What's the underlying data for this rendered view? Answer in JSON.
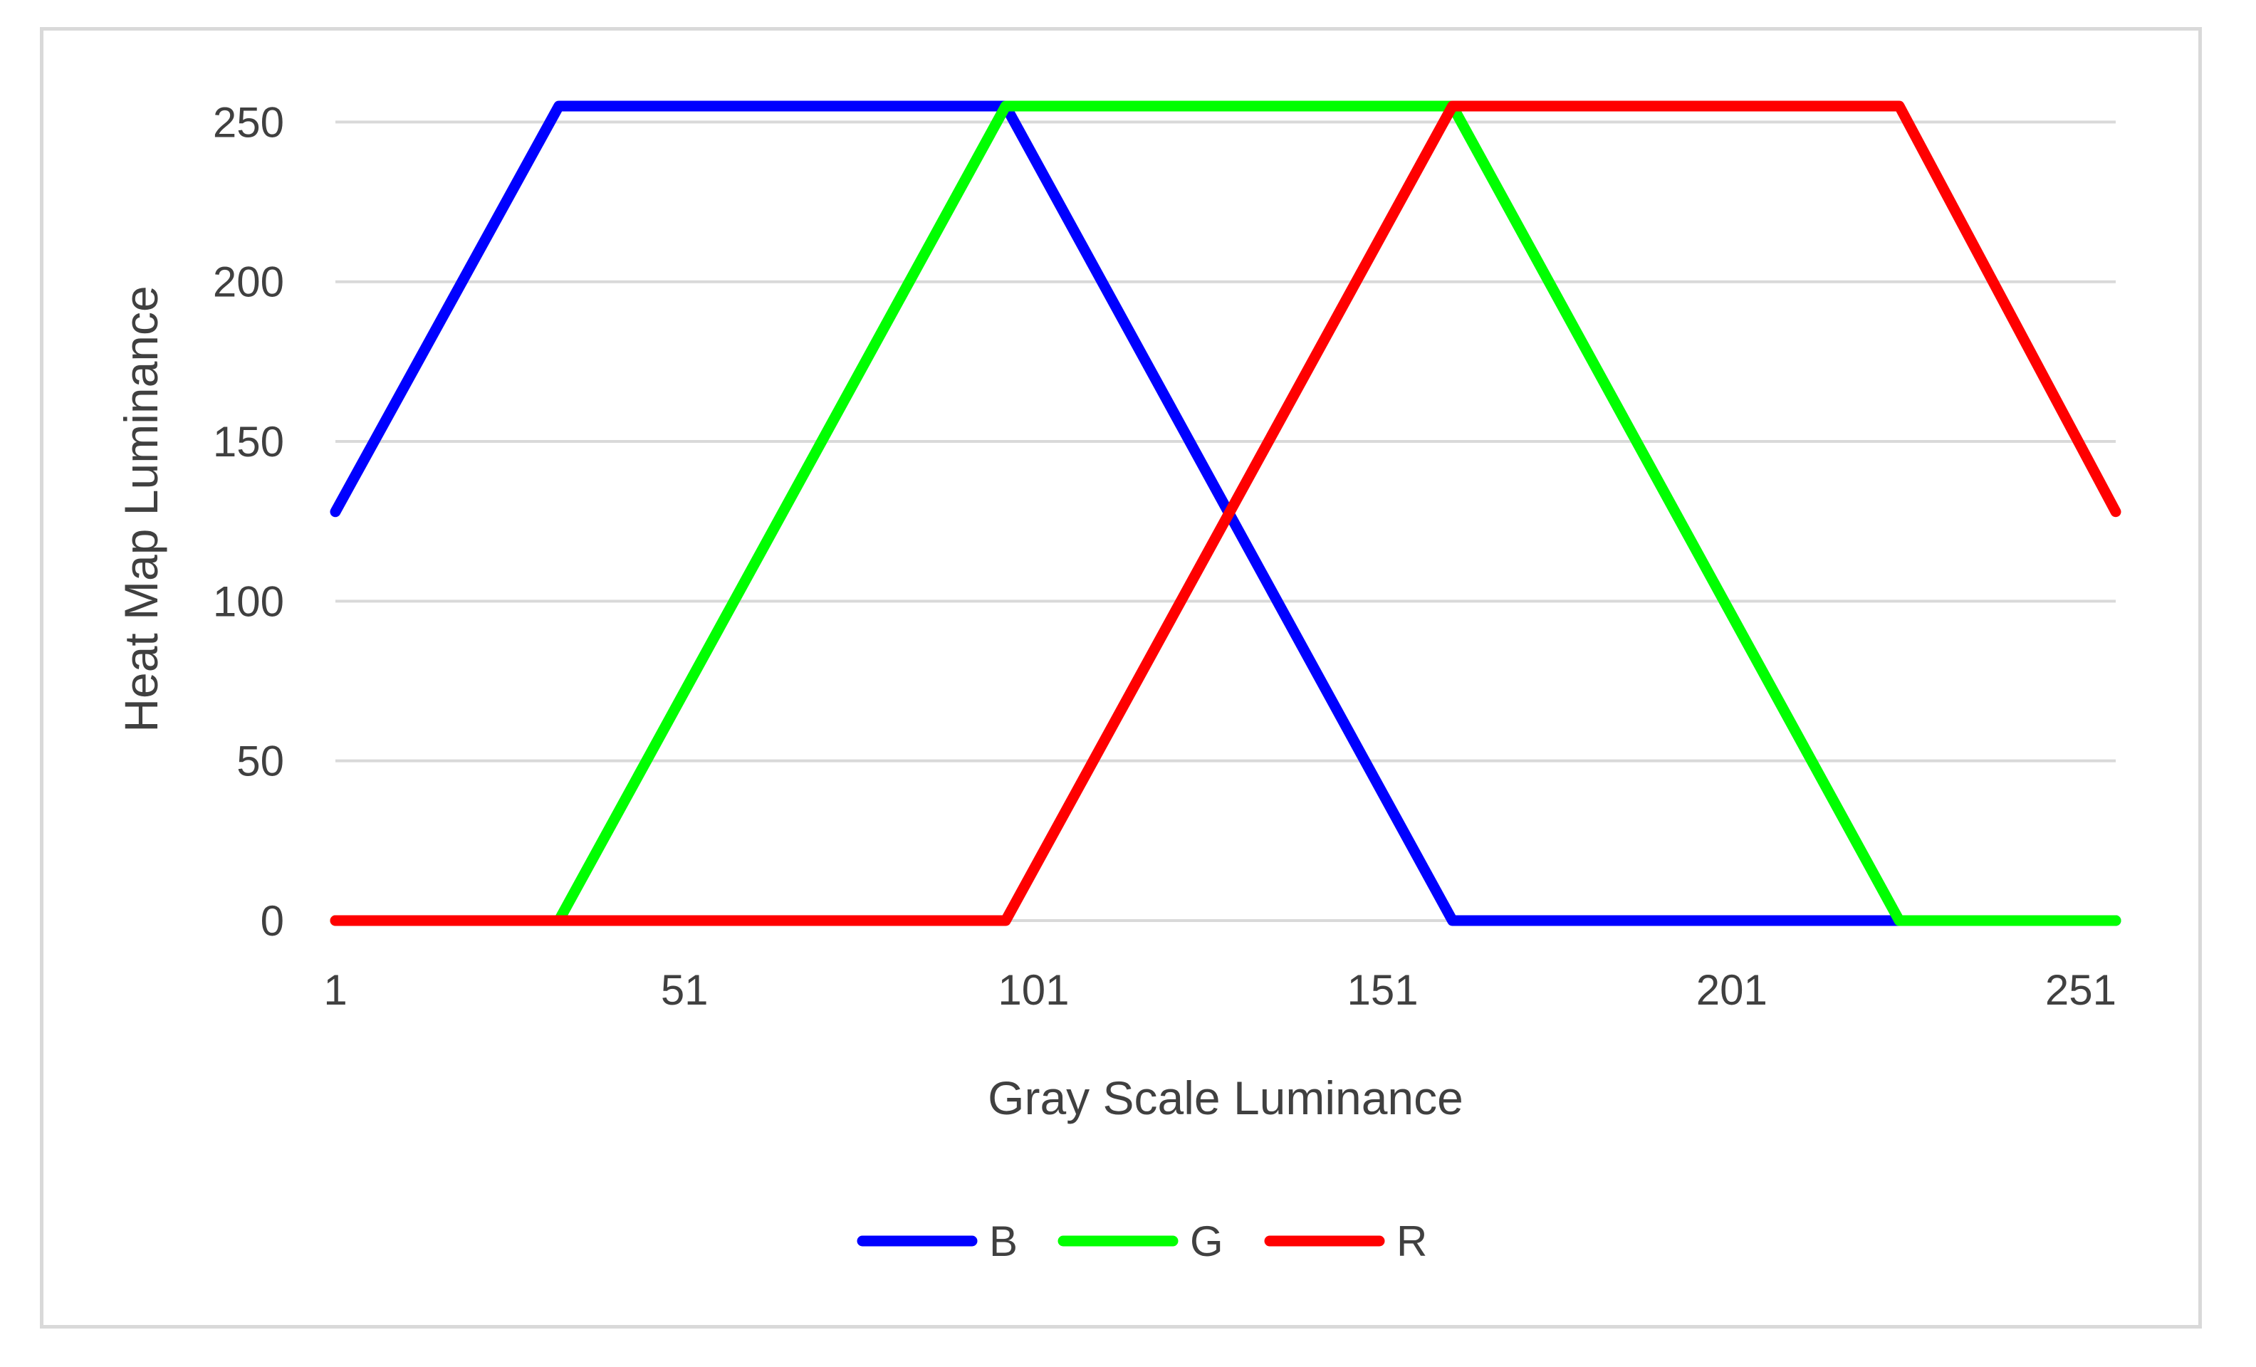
{
  "chart_data": {
    "type": "line",
    "title": "",
    "xlabel": "Gray Scale Luminance",
    "ylabel": "Heat Map Luminance",
    "xlim": [
      1,
      256
    ],
    "ylim": [
      0,
      255
    ],
    "x_ticks": [
      "1",
      "51",
      "101",
      "151",
      "201",
      "251"
    ],
    "x_tick_values": [
      1,
      51,
      101,
      151,
      201,
      251
    ],
    "y_ticks": [
      "0",
      "50",
      "100",
      "150",
      "200",
      "250"
    ],
    "y_tick_values": [
      0,
      50,
      100,
      150,
      200,
      250
    ],
    "grid": "horizontal",
    "legend_position": "bottom",
    "series": [
      {
        "name": "B",
        "color": "#0000ff",
        "x": [
          1,
          33,
          97,
          161,
          256
        ],
        "y": [
          128,
          255,
          255,
          0,
          0
        ]
      },
      {
        "name": "G",
        "color": "#00ff00",
        "x": [
          1,
          33,
          97,
          161,
          225,
          256
        ],
        "y": [
          0,
          0,
          255,
          255,
          0,
          0
        ]
      },
      {
        "name": "R",
        "color": "#ff0000",
        "x": [
          1,
          97,
          161,
          225,
          256
        ],
        "y": [
          0,
          0,
          255,
          255,
          128
        ]
      }
    ]
  }
}
